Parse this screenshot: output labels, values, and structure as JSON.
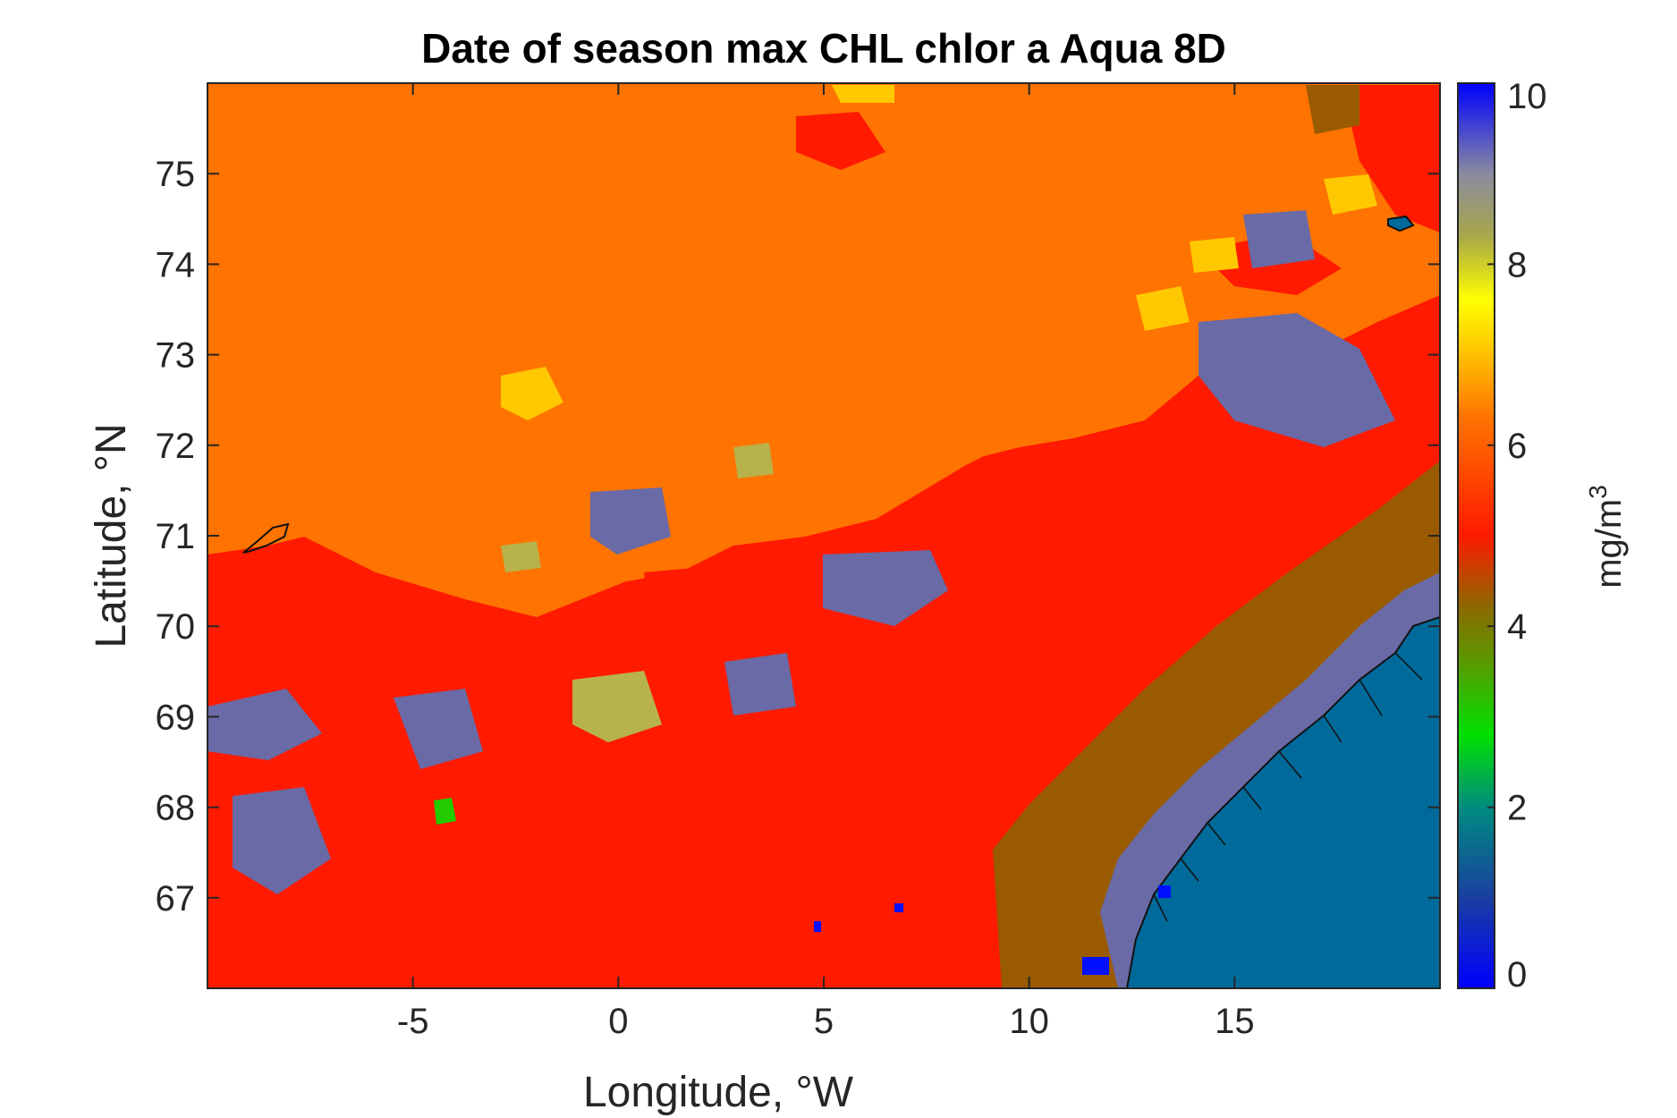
{
  "chart_data": {
    "type": "heatmap",
    "title": "Date of season max CHL chlor a Aqua 8D",
    "xlabel": "Longitude, °W",
    "ylabel": "Latitude, °N",
    "xlim": [
      -10,
      20
    ],
    "ylim": [
      66,
      76
    ],
    "x_ticks": [
      -5,
      0,
      5,
      10,
      15
    ],
    "x_tick_labels": [
      "-5",
      "0",
      "5",
      "10",
      "15"
    ],
    "y_ticks": [
      67,
      68,
      69,
      70,
      71,
      72,
      73,
      74,
      75
    ],
    "y_tick_labels": [
      "67",
      "68",
      "69",
      "70",
      "71",
      "72",
      "73",
      "74",
      "75"
    ],
    "colorbar": {
      "label_base": "mg/m",
      "label_exponent": "3",
      "range": [
        0,
        10
      ],
      "ticks": [
        0,
        2,
        4,
        6,
        8,
        10
      ],
      "tick_labels": [
        "0",
        "2",
        "4",
        "6",
        "8",
        "10"
      ],
      "stops": [
        {
          "value": 0,
          "color": "#0000ff"
        },
        {
          "value": 1,
          "color": "#1a3fa0"
        },
        {
          "value": 2,
          "color": "#008c80"
        },
        {
          "value": 2.8,
          "color": "#00e000"
        },
        {
          "value": 3.6,
          "color": "#5a9a00"
        },
        {
          "value": 4.2,
          "color": "#8a6a00"
        },
        {
          "value": 5,
          "color": "#ff1a00"
        },
        {
          "value": 6.3,
          "color": "#ff7300"
        },
        {
          "value": 7,
          "color": "#ffc000"
        },
        {
          "value": 7.6,
          "color": "#ffff00"
        },
        {
          "value": 8.3,
          "color": "#a8a84a"
        },
        {
          "value": 9,
          "color": "#8a8aa0"
        },
        {
          "value": 10,
          "color": "#0000ff"
        }
      ]
    },
    "colors": {
      "background_value": "#ff7300",
      "red_region": "#ff1a00",
      "brown_coastal_band": "#9a5a00",
      "purple_patches": "#6a6aa6",
      "olive_patches": "#b8b24a",
      "yellow_patches": "#ffc800",
      "land_norway": "#006a9a",
      "green_patch": "#22cc00",
      "blue_specks": "#0010ff"
    }
  }
}
